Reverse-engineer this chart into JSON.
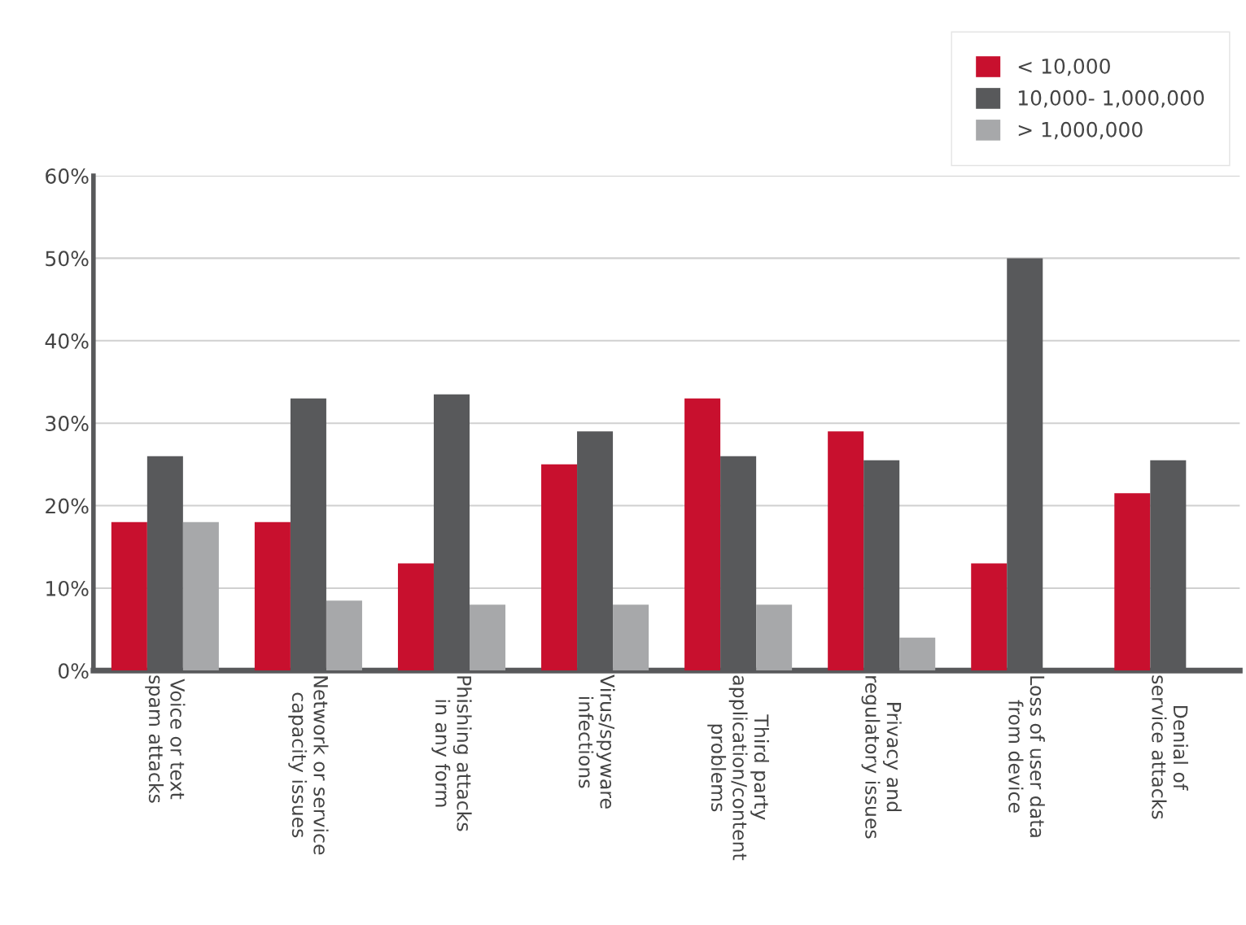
{
  "chart_data": {
    "type": "bar",
    "categories": [
      "Voice or text\nspam attacks",
      "Network or service\ncapacity issues",
      "Phishing attacks\nin any form",
      "Virus/spyware\ninfections",
      "Third party\napplication/content\nproblems",
      "Privacy and\nregulatory issues",
      "Loss of user data\nfrom device",
      "Denial of\nservice attacks"
    ],
    "series": [
      {
        "name": "< 10,000",
        "color": "#c8102e",
        "values": [
          18,
          18,
          13,
          25,
          33,
          29,
          13,
          21.5
        ]
      },
      {
        "name": "10,000- 1,000,000",
        "color": "#58595b",
        "values": [
          26,
          33,
          33.5,
          29,
          26,
          25.5,
          50,
          25.5
        ]
      },
      {
        "name": "> 1,000,000",
        "color": "#a7a8aa",
        "values": [
          18,
          8.5,
          8,
          8,
          8,
          4,
          null,
          null
        ]
      }
    ],
    "ylim": [
      0,
      60
    ],
    "yticks": [
      {
        "value": 0,
        "label": "0%"
      },
      {
        "value": 10,
        "label": "10%"
      },
      {
        "value": 20,
        "label": "20%"
      },
      {
        "value": 30,
        "label": "30%"
      },
      {
        "value": 40,
        "label": "40%"
      },
      {
        "value": 50,
        "label": "50%"
      },
      {
        "value": 60,
        "label": "60%"
      }
    ],
    "grid": "y",
    "legend": "top right"
  }
}
